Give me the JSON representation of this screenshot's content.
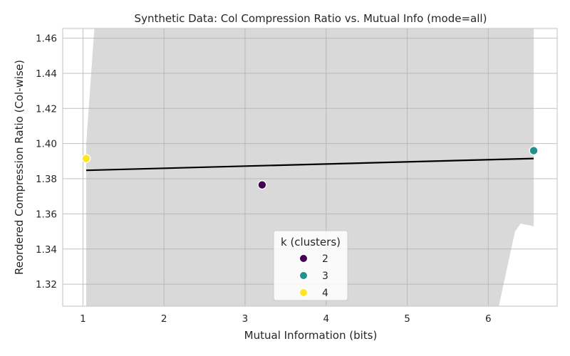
{
  "chart_data": {
    "type": "scatter",
    "title": "Synthetic Data: Col Compression Ratio vs. Mutual Info (mode=all)",
    "xlabel": "Mutual Information (bits)",
    "ylabel": "Reordered Compression Ratio (Col-wise)",
    "xlim": [
      0.75,
      6.85
    ],
    "ylim": [
      1.3075,
      1.4655
    ],
    "x_ticks": [
      1,
      2,
      3,
      4,
      5,
      6
    ],
    "y_ticks": [
      1.32,
      1.34,
      1.36,
      1.38,
      1.4,
      1.42,
      1.44,
      1.46
    ],
    "x_tick_labels": [
      "1",
      "2",
      "3",
      "4",
      "5",
      "6"
    ],
    "y_tick_labels": [
      "1.32",
      "1.34",
      "1.36",
      "1.38",
      "1.40",
      "1.42",
      "1.44",
      "1.46"
    ],
    "grid": true,
    "legend": {
      "title": "k (clusters)",
      "placement": "bottom-center",
      "entries": [
        {
          "label": "2",
          "color": "#440154"
        },
        {
          "label": "3",
          "color": "#21918c"
        },
        {
          "label": "4",
          "color": "#fde725"
        }
      ]
    },
    "points": [
      {
        "x": 1.04,
        "y": 1.3915,
        "k": "4",
        "color": "#fde725"
      },
      {
        "x": 3.21,
        "y": 1.3765,
        "k": "2",
        "color": "#440154"
      },
      {
        "x": 6.56,
        "y": 1.396,
        "k": "3",
        "color": "#21918c"
      }
    ],
    "regression_line": {
      "x": [
        1.04,
        6.56
      ],
      "y": [
        1.3848,
        1.3915
      ],
      "color": "#000000"
    },
    "confidence_band": {
      "color": "#d9d9d9",
      "upper": [
        [
          1.04,
          1.4
        ],
        [
          1.14,
          1.4655
        ],
        [
          6.56,
          1.4655
        ]
      ],
      "lower": [
        [
          6.56,
          1.353
        ],
        [
          6.4,
          1.3545
        ],
        [
          6.33,
          1.35
        ],
        [
          6.13,
          1.3075
        ],
        [
          1.04,
          1.3075
        ]
      ]
    }
  }
}
